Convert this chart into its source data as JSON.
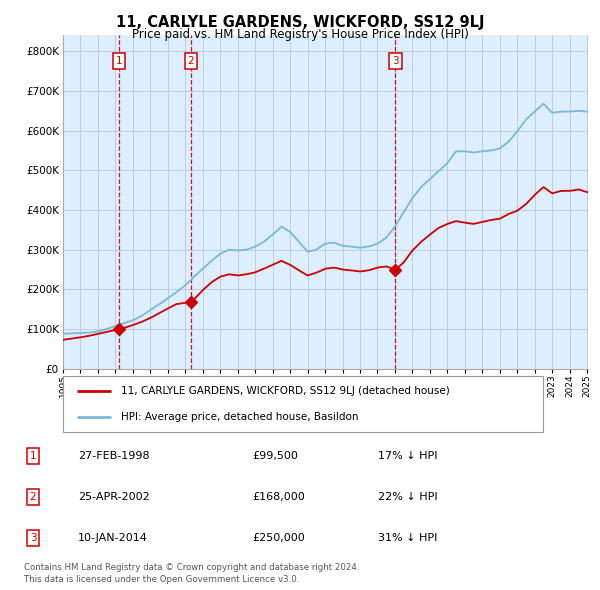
{
  "title": "11, CARLYLE GARDENS, WICKFORD, SS12 9LJ",
  "subtitle": "Price paid vs. HM Land Registry's House Price Index (HPI)",
  "legend_line1": "11, CARLYLE GARDENS, WICKFORD, SS12 9LJ (detached house)",
  "legend_line2": "HPI: Average price, detached house, Basildon",
  "table_rows": [
    {
      "num": "1",
      "date": "27-FEB-1998",
      "price": "£99,500",
      "hpi": "17% ↓ HPI"
    },
    {
      "num": "2",
      "date": "25-APR-2002",
      "price": "£168,000",
      "hpi": "22% ↓ HPI"
    },
    {
      "num": "3",
      "date": "10-JAN-2014",
      "price": "£250,000",
      "hpi": "31% ↓ HPI"
    }
  ],
  "footer1": "Contains HM Land Registry data © Crown copyright and database right 2024.",
  "footer2": "This data is licensed under the Open Government Licence v3.0.",
  "sale_years": [
    1998.21,
    2002.33,
    2014.03
  ],
  "sale_prices": [
    99500,
    168000,
    250000
  ],
  "hpi_color": "#7ab8d9",
  "red_line_color": "#cc0000",
  "bg_shaded_color": "#ddeeff",
  "grid_color": "#b8c8d8",
  "ylim": [
    0,
    840000
  ],
  "yticks": [
    0,
    100000,
    200000,
    300000,
    400000,
    500000,
    600000,
    700000,
    800000
  ],
  "xstart": 1995,
  "xend": 2025,
  "hpi_series": [
    [
      1995.0,
      88000
    ],
    [
      1995.5,
      89000
    ],
    [
      1996.0,
      90000
    ],
    [
      1996.5,
      91000
    ],
    [
      1997.0,
      94000
    ],
    [
      1997.5,
      100000
    ],
    [
      1998.0,
      108000
    ],
    [
      1998.5,
      115000
    ],
    [
      1999.0,
      122000
    ],
    [
      1999.5,
      133000
    ],
    [
      2000.0,
      148000
    ],
    [
      2000.5,
      162000
    ],
    [
      2001.0,
      178000
    ],
    [
      2001.5,
      193000
    ],
    [
      2002.0,
      210000
    ],
    [
      2002.5,
      232000
    ],
    [
      2003.0,
      252000
    ],
    [
      2003.5,
      272000
    ],
    [
      2004.0,
      290000
    ],
    [
      2004.5,
      300000
    ],
    [
      2005.0,
      298000
    ],
    [
      2005.5,
      300000
    ],
    [
      2006.0,
      308000
    ],
    [
      2006.5,
      320000
    ],
    [
      2007.0,
      338000
    ],
    [
      2007.5,
      358000
    ],
    [
      2008.0,
      345000
    ],
    [
      2008.5,
      320000
    ],
    [
      2009.0,
      295000
    ],
    [
      2009.5,
      300000
    ],
    [
      2010.0,
      315000
    ],
    [
      2010.5,
      318000
    ],
    [
      2011.0,
      310000
    ],
    [
      2011.5,
      308000
    ],
    [
      2012.0,
      305000
    ],
    [
      2012.5,
      308000
    ],
    [
      2013.0,
      315000
    ],
    [
      2013.5,
      330000
    ],
    [
      2014.0,
      358000
    ],
    [
      2014.5,
      395000
    ],
    [
      2015.0,
      430000
    ],
    [
      2015.5,
      458000
    ],
    [
      2016.0,
      478000
    ],
    [
      2016.5,
      498000
    ],
    [
      2017.0,
      518000
    ],
    [
      2017.5,
      548000
    ],
    [
      2018.0,
      548000
    ],
    [
      2018.5,
      545000
    ],
    [
      2019.0,
      548000
    ],
    [
      2019.5,
      550000
    ],
    [
      2020.0,
      555000
    ],
    [
      2020.5,
      572000
    ],
    [
      2021.0,
      598000
    ],
    [
      2021.5,
      628000
    ],
    [
      2022.0,
      648000
    ],
    [
      2022.5,
      668000
    ],
    [
      2023.0,
      645000
    ],
    [
      2023.5,
      648000
    ],
    [
      2024.0,
      648000
    ],
    [
      2024.5,
      650000
    ],
    [
      2025.0,
      648000
    ]
  ],
  "red_series": [
    [
      1995.0,
      73000
    ],
    [
      1995.5,
      76000
    ],
    [
      1996.0,
      79000
    ],
    [
      1996.5,
      83000
    ],
    [
      1997.0,
      88000
    ],
    [
      1997.5,
      93000
    ],
    [
      1998.21,
      99500
    ],
    [
      1998.5,
      103000
    ],
    [
      1999.0,
      110000
    ],
    [
      1999.5,
      118000
    ],
    [
      2000.0,
      128000
    ],
    [
      2000.5,
      140000
    ],
    [
      2001.0,
      152000
    ],
    [
      2001.5,
      163000
    ],
    [
      2002.33,
      168000
    ],
    [
      2002.5,
      175000
    ],
    [
      2003.0,
      198000
    ],
    [
      2003.5,
      218000
    ],
    [
      2004.0,
      232000
    ],
    [
      2004.5,
      238000
    ],
    [
      2005.0,
      235000
    ],
    [
      2005.5,
      238000
    ],
    [
      2006.0,
      243000
    ],
    [
      2006.5,
      252000
    ],
    [
      2007.0,
      262000
    ],
    [
      2007.5,
      272000
    ],
    [
      2008.0,
      262000
    ],
    [
      2008.5,
      248000
    ],
    [
      2009.0,
      235000
    ],
    [
      2009.5,
      242000
    ],
    [
      2010.0,
      252000
    ],
    [
      2010.5,
      255000
    ],
    [
      2011.0,
      250000
    ],
    [
      2011.5,
      248000
    ],
    [
      2012.0,
      245000
    ],
    [
      2012.5,
      248000
    ],
    [
      2013.0,
      255000
    ],
    [
      2013.5,
      258000
    ],
    [
      2014.03,
      250000
    ],
    [
      2014.5,
      268000
    ],
    [
      2015.0,
      298000
    ],
    [
      2015.5,
      320000
    ],
    [
      2016.0,
      338000
    ],
    [
      2016.5,
      355000
    ],
    [
      2017.0,
      365000
    ],
    [
      2017.5,
      372000
    ],
    [
      2018.0,
      368000
    ],
    [
      2018.5,
      365000
    ],
    [
      2019.0,
      370000
    ],
    [
      2019.5,
      375000
    ],
    [
      2020.0,
      378000
    ],
    [
      2020.5,
      390000
    ],
    [
      2021.0,
      398000
    ],
    [
      2021.5,
      415000
    ],
    [
      2022.0,
      438000
    ],
    [
      2022.5,
      458000
    ],
    [
      2023.0,
      442000
    ],
    [
      2023.5,
      448000
    ],
    [
      2024.0,
      448000
    ],
    [
      2024.5,
      452000
    ],
    [
      2025.0,
      445000
    ]
  ]
}
